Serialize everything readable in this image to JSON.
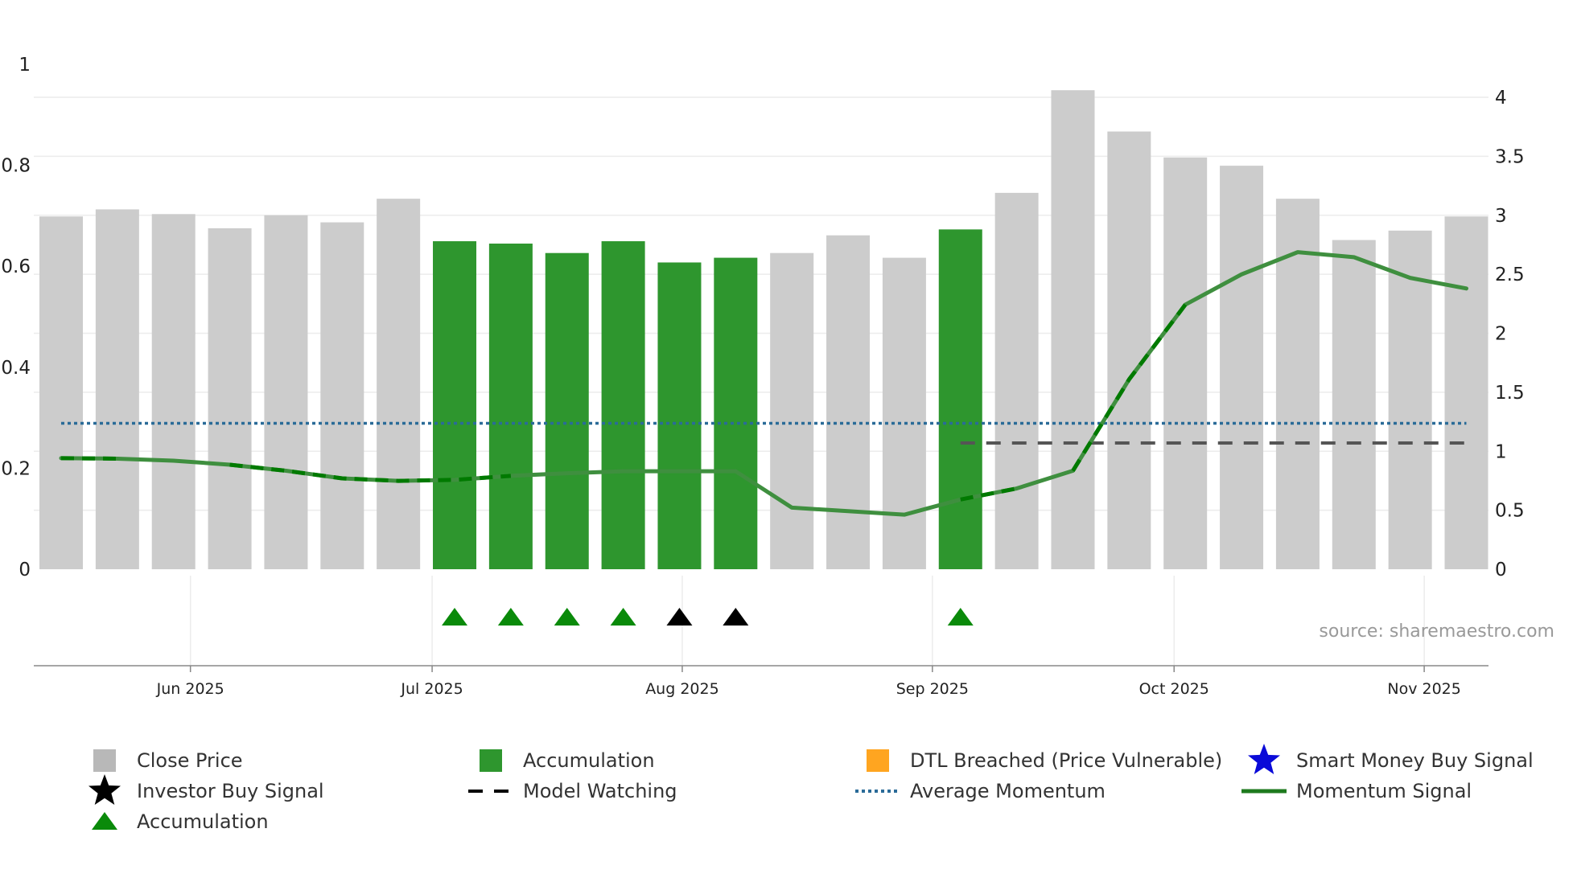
{
  "chart_data": {
    "type": "bar",
    "title": "",
    "xlabel": "",
    "ylabel_left": "",
    "ylabel_right": "",
    "left_axis": {
      "range": [
        0,
        1
      ],
      "ticks": [
        "0",
        "0.2",
        "0.4",
        "0.6",
        "0.8",
        "1"
      ]
    },
    "right_axis": {
      "range": [
        0,
        4.35
      ],
      "ticks": [
        "0",
        "0.5",
        "1",
        "1.5",
        "2",
        "2.5",
        "3",
        "3.5",
        "4"
      ]
    },
    "x_ticks": [
      {
        "label": "Jun 2025",
        "week": 2.3
      },
      {
        "label": "Jul 2025",
        "week": 6.6
      },
      {
        "label": "Aug 2025",
        "week": 11.05
      },
      {
        "label": "Sep 2025",
        "week": 15.5
      },
      {
        "label": "Oct 2025",
        "week": 19.8
      },
      {
        "label": "Nov 2025",
        "week": 24.25
      }
    ],
    "weeks": 26,
    "close_price": [
      2.99,
      3.05,
      3.01,
      2.89,
      3.0,
      2.94,
      3.14,
      2.78,
      2.76,
      2.68,
      2.78,
      2.6,
      2.64,
      2.68,
      2.83,
      2.64,
      2.88,
      3.19,
      4.06,
      3.71,
      3.49,
      3.42,
      3.14,
      2.79,
      2.87,
      2.99
    ],
    "accumulation_weeks": [
      7,
      8,
      9,
      10,
      11,
      12,
      16
    ],
    "momentum_signal": [
      0.22,
      0.219,
      0.215,
      0.207,
      0.195,
      0.18,
      0.175,
      0.177,
      0.185,
      0.19,
      0.194,
      0.194,
      0.194,
      0.122,
      0.115,
      0.108,
      0.138,
      0.16,
      0.195,
      0.376,
      0.524,
      0.584,
      0.628,
      0.618,
      0.577,
      0.556
    ],
    "momentum_dashed_segments": [
      [
        0,
        1
      ],
      [
        3,
        8
      ],
      [
        16,
        17
      ],
      [
        18,
        20
      ]
    ],
    "average_momentum": 0.289,
    "model_watching": {
      "value": 0.25,
      "from_week": 16,
      "to_week": 25
    },
    "triangle_markers": [
      {
        "week": 7,
        "color": "green"
      },
      {
        "week": 8,
        "color": "green"
      },
      {
        "week": 9,
        "color": "green"
      },
      {
        "week": 10,
        "color": "green"
      },
      {
        "week": 11,
        "color": "black"
      },
      {
        "week": 12,
        "color": "black"
      },
      {
        "week": 16,
        "color": "green"
      }
    ],
    "source": "source: sharemaestro.com",
    "colors": {
      "close_price": "#cccccc",
      "accumulation": "#2e962e",
      "momentum": "#3f8f3f",
      "momentum_dash": "#007a00",
      "average_momentum": "#2a6b98",
      "model_watching": "#555555",
      "grid": "#ececec",
      "triangle_green": "#0a8a0a",
      "triangle_black": "#000000",
      "source": "#999999"
    }
  },
  "legend": [
    {
      "label": "Close Price",
      "marker": "square-grey",
      "color": "#b8b8b8"
    },
    {
      "label": "Accumulation",
      "marker": "square-green",
      "color": "#2e962e"
    },
    {
      "label": "DTL Breached (Price Vulnerable)",
      "marker": "square-orange",
      "color": "#ffa520"
    },
    {
      "label": "Smart Money Buy Signal",
      "marker": "star-blue",
      "color": "#0a0ad8"
    },
    {
      "label": "Investor Buy Signal",
      "marker": "star-black",
      "color": "#000000"
    },
    {
      "label": "Model Watching",
      "marker": "dash-black",
      "color": "#000000"
    },
    {
      "label": "Average Momentum",
      "marker": "dot-blue",
      "color": "#2a6b98"
    },
    {
      "label": "Momentum Signal",
      "marker": "line-green",
      "color": "#1e7a1e"
    },
    {
      "label": "Accumulation",
      "marker": "triangle-green",
      "color": "#0a8a0a"
    }
  ]
}
